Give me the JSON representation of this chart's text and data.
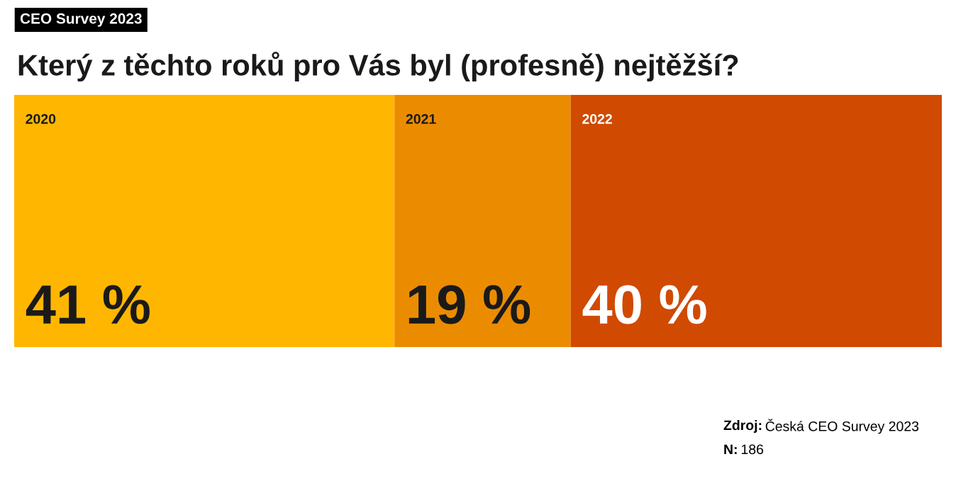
{
  "chart_data": {
    "type": "bar",
    "orientation": "horizontal",
    "stacked": true,
    "title": "Který z těchto roků pro Vás byl (profesně) nejtěžší?",
    "categories": [
      null
    ],
    "series": [
      {
        "name": "2020",
        "color": "#ffb600",
        "values": [
          41
        ],
        "value_labels": [
          "41 %"
        ]
      },
      {
        "name": "2021",
        "color": "#eb8c00",
        "values": [
          19
        ],
        "value_labels": [
          "19 %"
        ]
      },
      {
        "name": "2022",
        "color": "#d04a02",
        "values": [
          40
        ],
        "value_labels": [
          "40 %"
        ]
      }
    ],
    "legend": false,
    "annotations": [
      "CEO Survey 2023",
      "Zdroj: Česká CEO Survey 2023",
      "N: 186"
    ]
  }
}
